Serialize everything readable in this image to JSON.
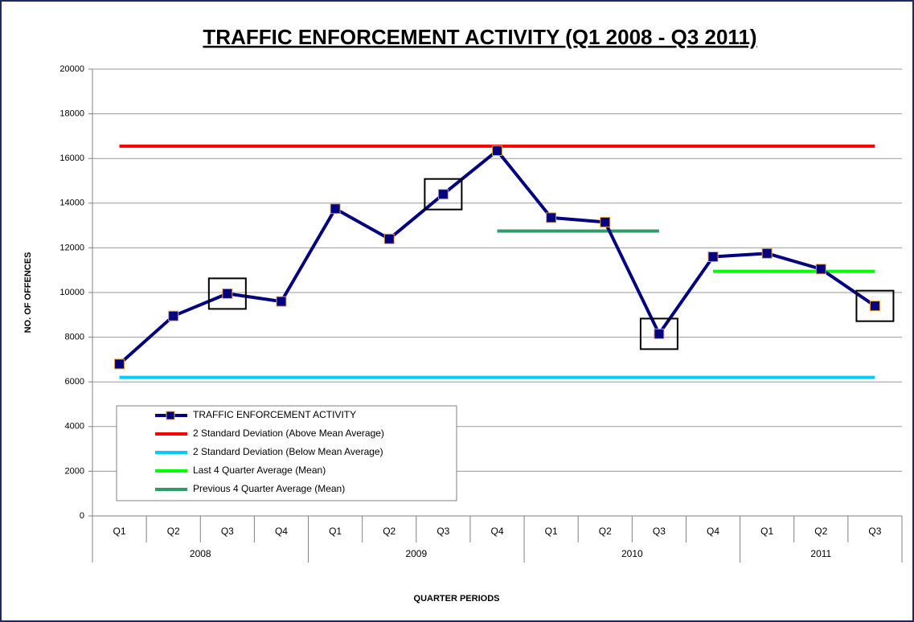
{
  "chart_data": {
    "type": "line",
    "title": "TRAFFIC ENFORCEMENT ACTIVITY (Q1 2008 - Q3 2011)",
    "xlabel": "QUARTER PERIODS",
    "ylabel": "NO. OF OFFENCES",
    "categories": [
      "Q1",
      "Q2",
      "Q3",
      "Q4",
      "Q1",
      "Q2",
      "Q3",
      "Q4",
      "Q1",
      "Q2",
      "Q3",
      "Q4",
      "Q1",
      "Q2",
      "Q3"
    ],
    "years": [
      "2008",
      "2008",
      "2008",
      "2008",
      "2009",
      "2009",
      "2009",
      "2009",
      "2010",
      "2010",
      "2010",
      "2010",
      "2011",
      "2011",
      "2011"
    ],
    "ylim": [
      0,
      20000
    ],
    "yticks": [
      0,
      2000,
      4000,
      6000,
      8000,
      10000,
      12000,
      14000,
      16000,
      18000,
      20000
    ],
    "grid": true,
    "legend": "lower left",
    "highlighted": [
      2,
      6,
      10,
      14
    ],
    "series": [
      {
        "name": "TRAFFIC ENFORCEMENT ACTIVITY",
        "color": "#000080",
        "marker": "square",
        "marker_edge_color": "#e8a33d",
        "values": [
          6800,
          8950,
          9950,
          9600,
          13750,
          12400,
          14400,
          16350,
          13350,
          13150,
          8150,
          11600,
          11750,
          11050,
          9400
        ]
      },
      {
        "name": "2 Standard Deviation (Above Mean Average)",
        "color": "#ff0000",
        "values": [
          16550,
          16550,
          16550,
          16550,
          16550,
          16550,
          16550,
          16550,
          16550,
          16550,
          16550,
          16550,
          16550,
          16550,
          16550
        ]
      },
      {
        "name": "2 Standard Deviation (Below Mean Average)",
        "color": "#00ccff",
        "values": [
          6200,
          6200,
          6200,
          6200,
          6200,
          6200,
          6200,
          6200,
          6200,
          6200,
          6200,
          6200,
          6200,
          6200,
          6200
        ]
      },
      {
        "name": "Last 4 Quarter Average (Mean)",
        "color": "#00ff00",
        "values": [
          null,
          null,
          null,
          null,
          null,
          null,
          null,
          null,
          null,
          null,
          null,
          10950,
          10950,
          10950,
          10950
        ]
      },
      {
        "name": "Previous 4 Quarter Average (Mean)",
        "color": "#339966",
        "values": [
          null,
          null,
          null,
          null,
          null,
          null,
          null,
          12750,
          12750,
          12750,
          12750,
          null,
          null,
          null,
          null
        ]
      }
    ]
  }
}
